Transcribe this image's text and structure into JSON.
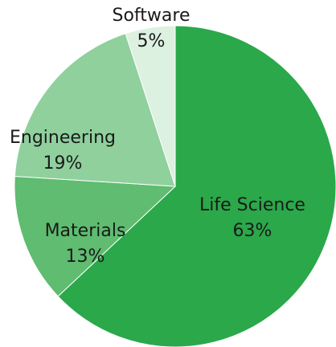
{
  "chart_data": {
    "type": "pie",
    "categories": [
      "Life Science",
      "Materials",
      "Engineering",
      "Software"
    ],
    "values": [
      63,
      13,
      19,
      5
    ],
    "value_labels": [
      "63%",
      "13%",
      "19%",
      "5%"
    ],
    "colors": [
      "#2ba84a",
      "#5fbc70",
      "#8fd09d",
      "#dcf1e0"
    ],
    "start": "12 o'clock",
    "direction": "clockwise",
    "title": "",
    "legend": "none"
  }
}
